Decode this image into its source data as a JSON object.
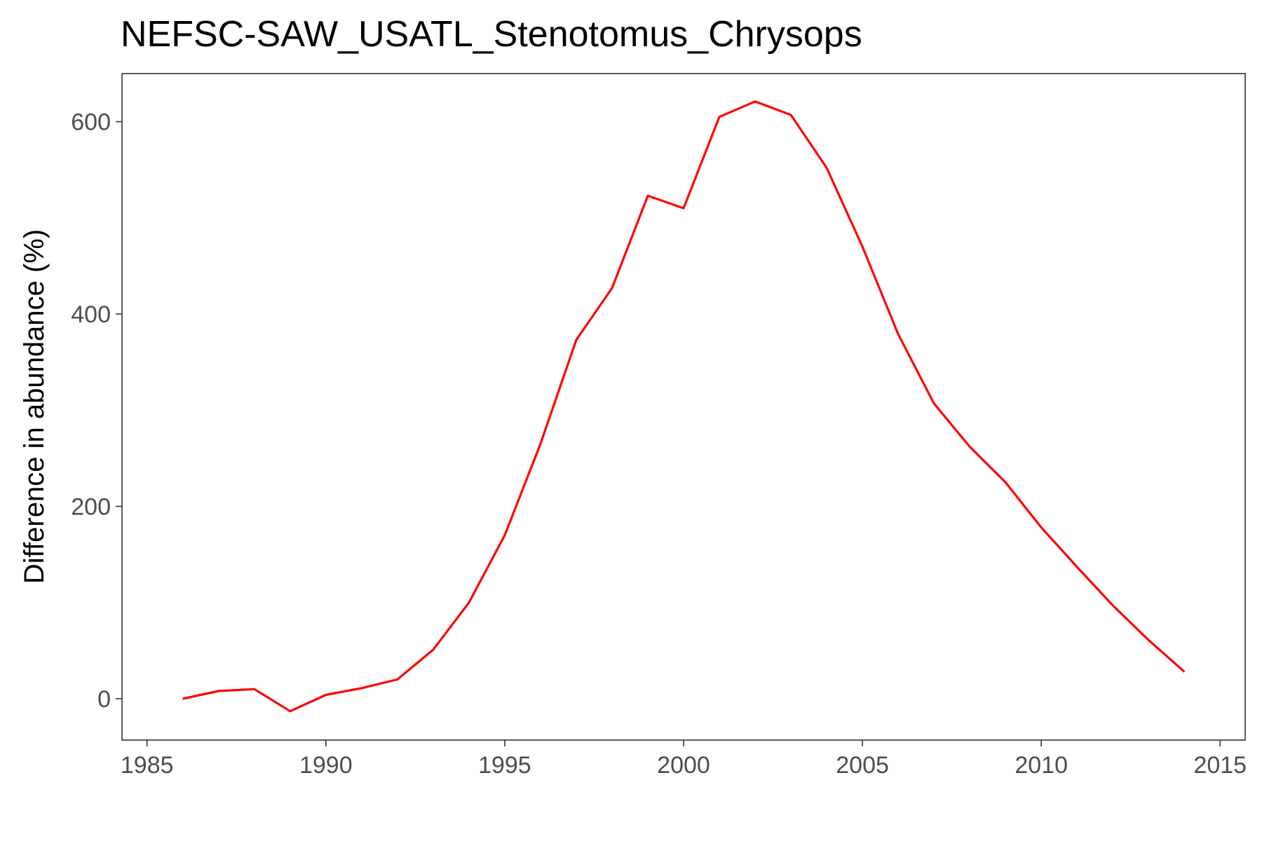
{
  "chart_data": {
    "type": "line",
    "title": "NEFSC-SAW_USATL_Stenotomus_Chrysops",
    "xlabel": "",
    "ylabel": "Difference in abundance (%)",
    "xlim": [
      1984.3,
      2015.7
    ],
    "ylim": [
      -43,
      650
    ],
    "x_ticks": [
      1985,
      1990,
      1995,
      2000,
      2005,
      2010,
      2015
    ],
    "y_ticks": [
      0,
      200,
      400,
      600
    ],
    "grid": false,
    "series": [
      {
        "color": "#ff0000",
        "x": [
          1986,
          1987,
          1988,
          1989,
          1990,
          1991,
          1992,
          1993,
          1994,
          1995,
          1996,
          1997,
          1998,
          1999,
          2000,
          2001,
          2002,
          2003,
          2004,
          2005,
          2006,
          2007,
          2008,
          2009,
          2010,
          2011,
          2012,
          2013,
          2014
        ],
        "y": [
          0,
          8,
          10,
          -13,
          4,
          11,
          20,
          51,
          100,
          170,
          265,
          373,
          427,
          523,
          510,
          605,
          621,
          607,
          552,
          470,
          379,
          307,
          262,
          225,
          178,
          137,
          97,
          61,
          28
        ]
      }
    ]
  }
}
